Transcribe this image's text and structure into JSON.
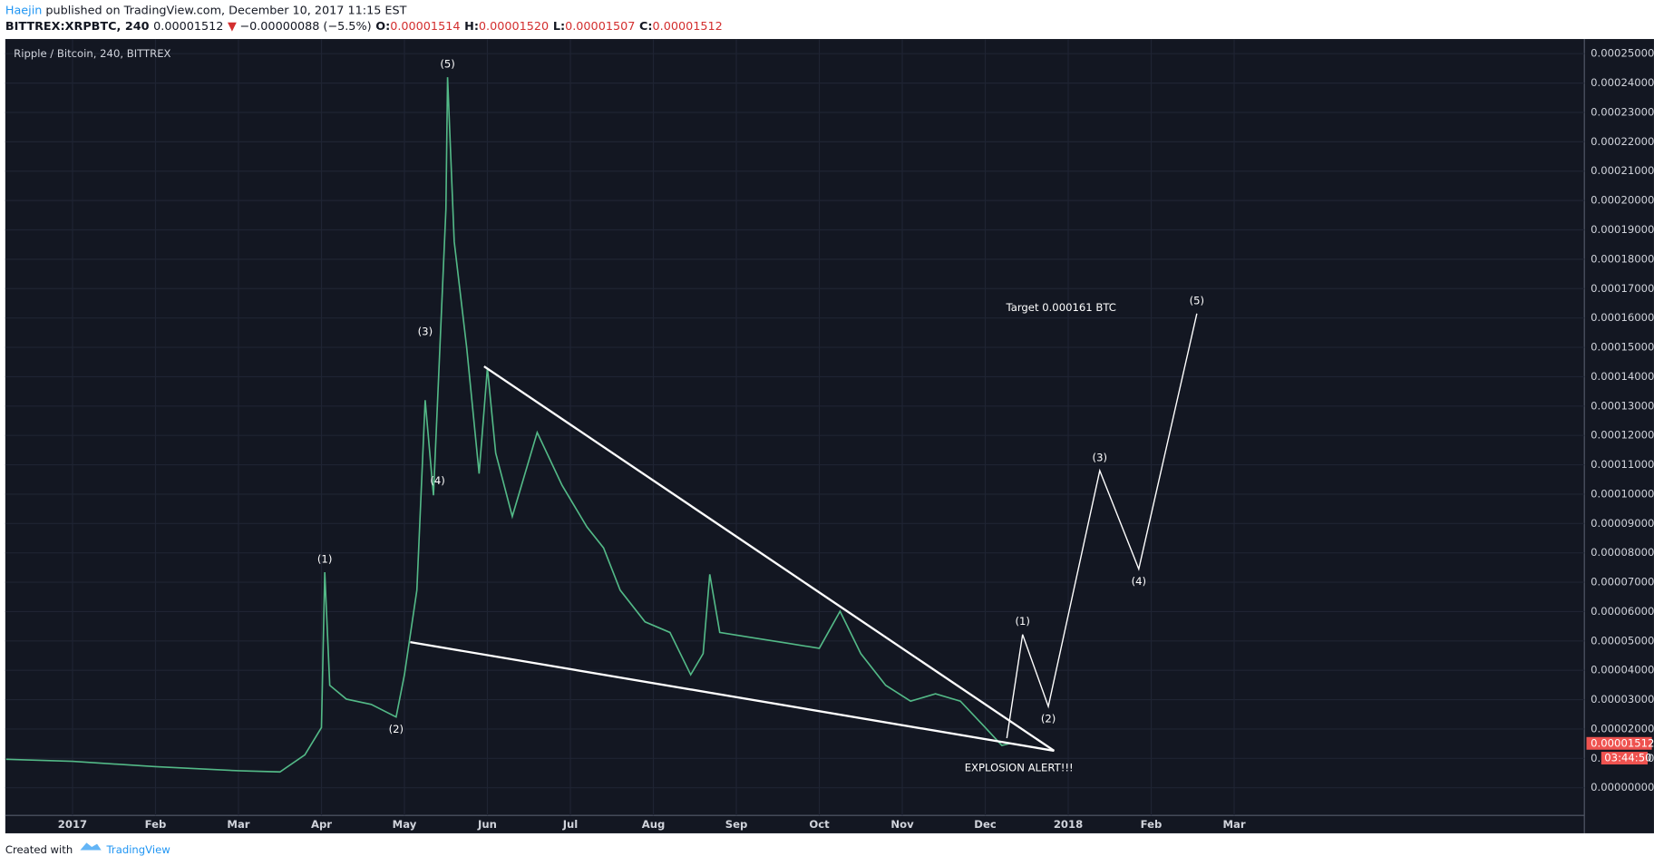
{
  "header": {
    "author": "Haejin",
    "published": " published on TradingView.com, December 10, 2017 11:15 EST",
    "symbol": "BITTREX:XRPBTC, 240",
    "last": "0.00001512",
    "arrow": "▼",
    "change": "−0.00000088 (−5.5%)",
    "o_label": "O:",
    "o": "0.00001514",
    "h_label": "H:",
    "h": "0.00001520",
    "l_label": "L:",
    "l": "0.00001507",
    "c_label": "C:",
    "c": "0.00001512"
  },
  "footer": {
    "created": "Created with",
    "brand": "TradingView"
  },
  "chart_data": {
    "type": "line",
    "legend_title": "Ripple / Bitcoin, 240, BITTREX",
    "annotations": [
      "Target 0.000161 BTC",
      "EXPLOSION ALERT!!!"
    ],
    "grid": true,
    "xlim": [
      -0.81,
      18.22
    ],
    "xticks": [
      {
        "value": 0,
        "label": "2017"
      },
      {
        "value": 1,
        "label": "Feb"
      },
      {
        "value": 2,
        "label": "Mar"
      },
      {
        "value": 3,
        "label": "Apr"
      },
      {
        "value": 4,
        "label": "May"
      },
      {
        "value": 5,
        "label": "Jun"
      },
      {
        "value": 6,
        "label": "Jul"
      },
      {
        "value": 7,
        "label": "Aug"
      },
      {
        "value": 8,
        "label": "Sep"
      },
      {
        "value": 9,
        "label": "Oct"
      },
      {
        "value": 10,
        "label": "Nov"
      },
      {
        "value": 11,
        "label": "Dec"
      },
      {
        "value": 12,
        "label": "2018"
      },
      {
        "value": 13,
        "label": "Feb"
      },
      {
        "value": 14,
        "label": "Mar"
      }
    ],
    "ylim": [
      -9.4e-06,
      0.000255
    ],
    "yticks": [
      {
        "value": 0,
        "label": "0.00000000"
      },
      {
        "value": 1e-05,
        "label": "0.00001000"
      },
      {
        "value": 2e-05,
        "label": "0.00002000"
      },
      {
        "value": 3e-05,
        "label": "0.00003000"
      },
      {
        "value": 4e-05,
        "label": "0.00004000"
      },
      {
        "value": 5e-05,
        "label": "0.00005000"
      },
      {
        "value": 6e-05,
        "label": "0.00006000"
      },
      {
        "value": 7e-05,
        "label": "0.00007000"
      },
      {
        "value": 8e-05,
        "label": "0.00008000"
      },
      {
        "value": 9e-05,
        "label": "0.00009000"
      },
      {
        "value": 0.0001,
        "label": "0.00010000"
      },
      {
        "value": 0.00011,
        "label": "0.00011000"
      },
      {
        "value": 0.00012,
        "label": "0.00012000"
      },
      {
        "value": 0.00013,
        "label": "0.00013000"
      },
      {
        "value": 0.00014,
        "label": "0.00014000"
      },
      {
        "value": 0.00015,
        "label": "0.00015000"
      },
      {
        "value": 0.00016,
        "label": "0.00016000"
      },
      {
        "value": 0.00017,
        "label": "0.00017000"
      },
      {
        "value": 0.00018,
        "label": "0.00018000"
      },
      {
        "value": 0.00019,
        "label": "0.00019000"
      },
      {
        "value": 0.0002,
        "label": "0.00020000"
      },
      {
        "value": 0.00021,
        "label": "0.00021000"
      },
      {
        "value": 0.00022,
        "label": "0.00022000"
      },
      {
        "value": 0.00023,
        "label": "0.00023000"
      },
      {
        "value": 0.00024,
        "label": "0.00024000"
      },
      {
        "value": 0.00025,
        "label": "0.00025000"
      }
    ],
    "series": [
      {
        "name": "XRPBTC",
        "color": "#53b987",
        "x": [
          -0.8,
          0,
          1,
          2,
          2.5,
          2.8,
          3.0,
          3.04,
          3.1,
          3.3,
          3.6,
          3.9,
          4.0,
          4.15,
          4.25,
          4.35,
          4.5,
          4.52,
          4.6,
          4.75,
          4.9,
          5.0,
          5.1,
          5.3,
          5.6,
          5.9,
          6.2,
          6.4,
          6.6,
          6.9,
          7.2,
          7.45,
          7.6,
          7.68,
          7.8,
          8.2,
          8.6,
          9.0,
          9.25,
          9.5,
          9.8,
          10.1,
          10.4,
          10.7,
          11.0,
          11.2,
          11.3
        ],
        "values": [
          9.7e-06,
          9e-06,
          7.2e-06,
          5.8e-06,
          5.4e-06,
          1.12e-05,
          2.05e-05,
          7.34e-05,
          3.49e-05,
          3.02e-05,
          2.84e-05,
          2.41e-05,
          3.85e-05,
          6.73e-05,
          0.000132,
          9.96e-05,
          0.000197,
          0.000242,
          0.000186,
          0.00015,
          0.000107,
          0.000143,
          0.000114,
          9.24e-05,
          0.000121,
          0.000103,
          8.88e-05,
          8.17e-05,
          6.73e-05,
          5.65e-05,
          5.29e-05,
          3.85e-05,
          4.57e-05,
          7.27e-05,
          5.29e-05,
          5.11e-05,
          4.93e-05,
          4.75e-05,
          6.01e-05,
          4.57e-05,
          3.49e-05,
          2.95e-05,
          3.2e-05,
          2.95e-05,
          2.05e-05,
          1.44e-05,
          1.512e-05
        ]
      }
    ],
    "trendlines": [
      {
        "color": "#ffffff",
        "x": [
          4.96,
          11.83
        ],
        "values": [
          0.0001435,
          1.26e-05
        ]
      },
      {
        "color": "#ffffff",
        "x": [
          4.07,
          11.83
        ],
        "values": [
          4.96e-05,
          1.26e-05
        ]
      }
    ],
    "projection": {
      "color": "#ffffff",
      "x": [
        11.26,
        11.45,
        11.76,
        12.38,
        12.85,
        13.55
      ],
      "values": [
        1.69e-05,
        5.22e-05,
        2.77e-05,
        0.000108,
        7.45e-05,
        0.0001615
      ]
    },
    "wave_labels": [
      {
        "text": "(1)",
        "x": 3.04,
        "y": 7.34e-05,
        "side": "above"
      },
      {
        "text": "(2)",
        "x": 3.9,
        "y": 2.41e-05,
        "side": "below"
      },
      {
        "text": "(3)",
        "x": 4.25,
        "y": 0.000151,
        "side": "above"
      },
      {
        "text": "(4)",
        "x": 4.4,
        "y": 0.0001045,
        "side": "on"
      },
      {
        "text": "(5)",
        "x": 4.52,
        "y": 0.000242,
        "side": "above"
      },
      {
        "text": "(1)",
        "x": 11.45,
        "y": 5.22e-05,
        "side": "above"
      },
      {
        "text": "(2)",
        "x": 11.76,
        "y": 2.77e-05,
        "side": "below"
      },
      {
        "text": "(3)",
        "x": 12.38,
        "y": 0.000108,
        "side": "above"
      },
      {
        "text": "(4)",
        "x": 12.85,
        "y": 7.45e-05,
        "side": "below"
      },
      {
        "text": "(5)",
        "x": 13.55,
        "y": 0.0001615,
        "side": "above"
      }
    ],
    "last_price": {
      "value": 1.512e-05,
      "label": "0.00001512",
      "countdown": "03:44:50",
      "color": "#ef5350"
    }
  }
}
